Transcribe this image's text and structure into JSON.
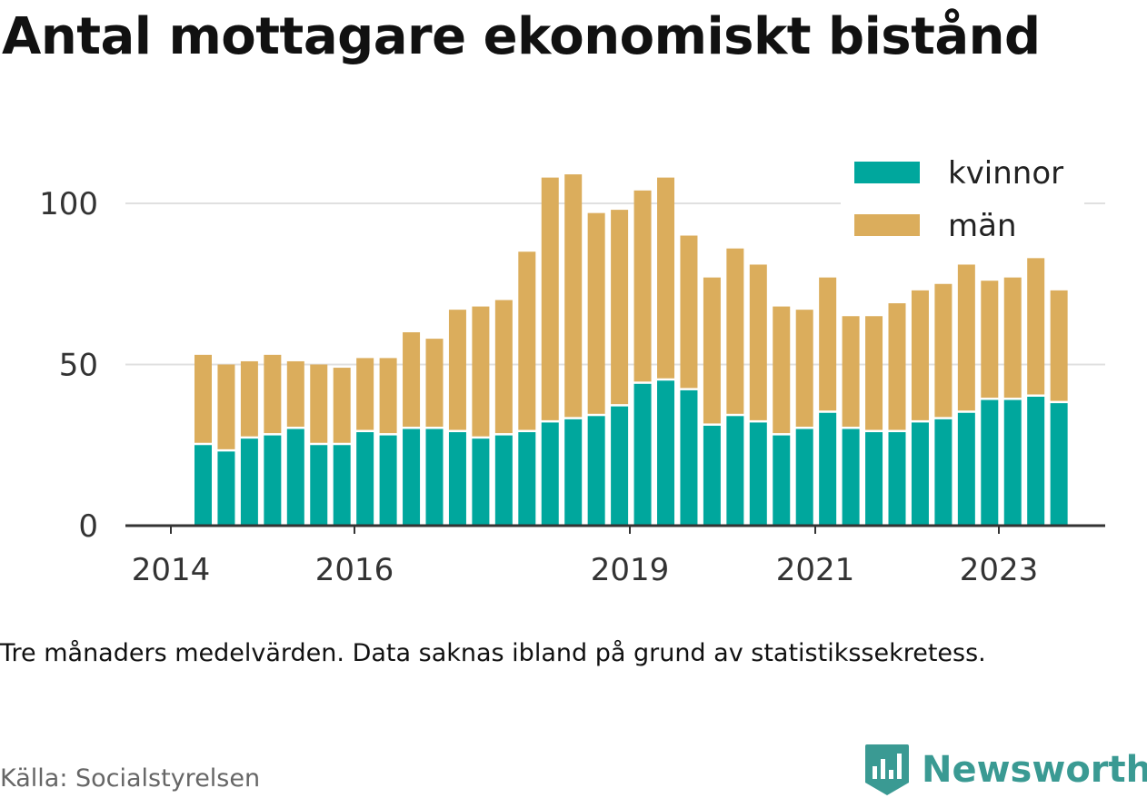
{
  "title": "Antal mottagare ekonomiskt bistånd",
  "note": "Tre månaders medelvärden. Data saknas ibland på grund av statistikssekretess.",
  "source": "Källa: Socialstyrelsen",
  "brand": {
    "name": "Newsworthy",
    "icon": "newsworthy-logo-icon"
  },
  "colors": {
    "kvinnor": "#00a79d",
    "man": "#dbad5c",
    "grid": "#e0e0e0",
    "axis": "#333333"
  },
  "chart_data": {
    "type": "bar",
    "stacked": true,
    "x_axis_ticks": [
      "2014",
      "2016",
      "2019",
      "2021",
      "2023"
    ],
    "y_axis_ticks": [
      0,
      50,
      100
    ],
    "ylim": [
      0,
      115
    ],
    "legend_position": "top-right",
    "grid": true,
    "series": [
      {
        "name": "kvinnor",
        "values": [
          25,
          23,
          27,
          28,
          30,
          25,
          25,
          29,
          28,
          30,
          30,
          29,
          27,
          28,
          29,
          32,
          33,
          34,
          37,
          44,
          45,
          42,
          31,
          34,
          32,
          28,
          30,
          35,
          30,
          29,
          29,
          32,
          33,
          35,
          39,
          39,
          40,
          38
        ]
      },
      {
        "name": "män",
        "values": [
          28,
          27,
          24,
          25,
          21,
          25,
          24,
          23,
          24,
          30,
          28,
          38,
          41,
          42,
          56,
          76,
          76,
          63,
          61,
          60,
          63,
          48,
          46,
          52,
          49,
          40,
          37,
          42,
          35,
          36,
          40,
          41,
          42,
          46,
          37,
          38,
          43,
          35
        ]
      }
    ]
  }
}
